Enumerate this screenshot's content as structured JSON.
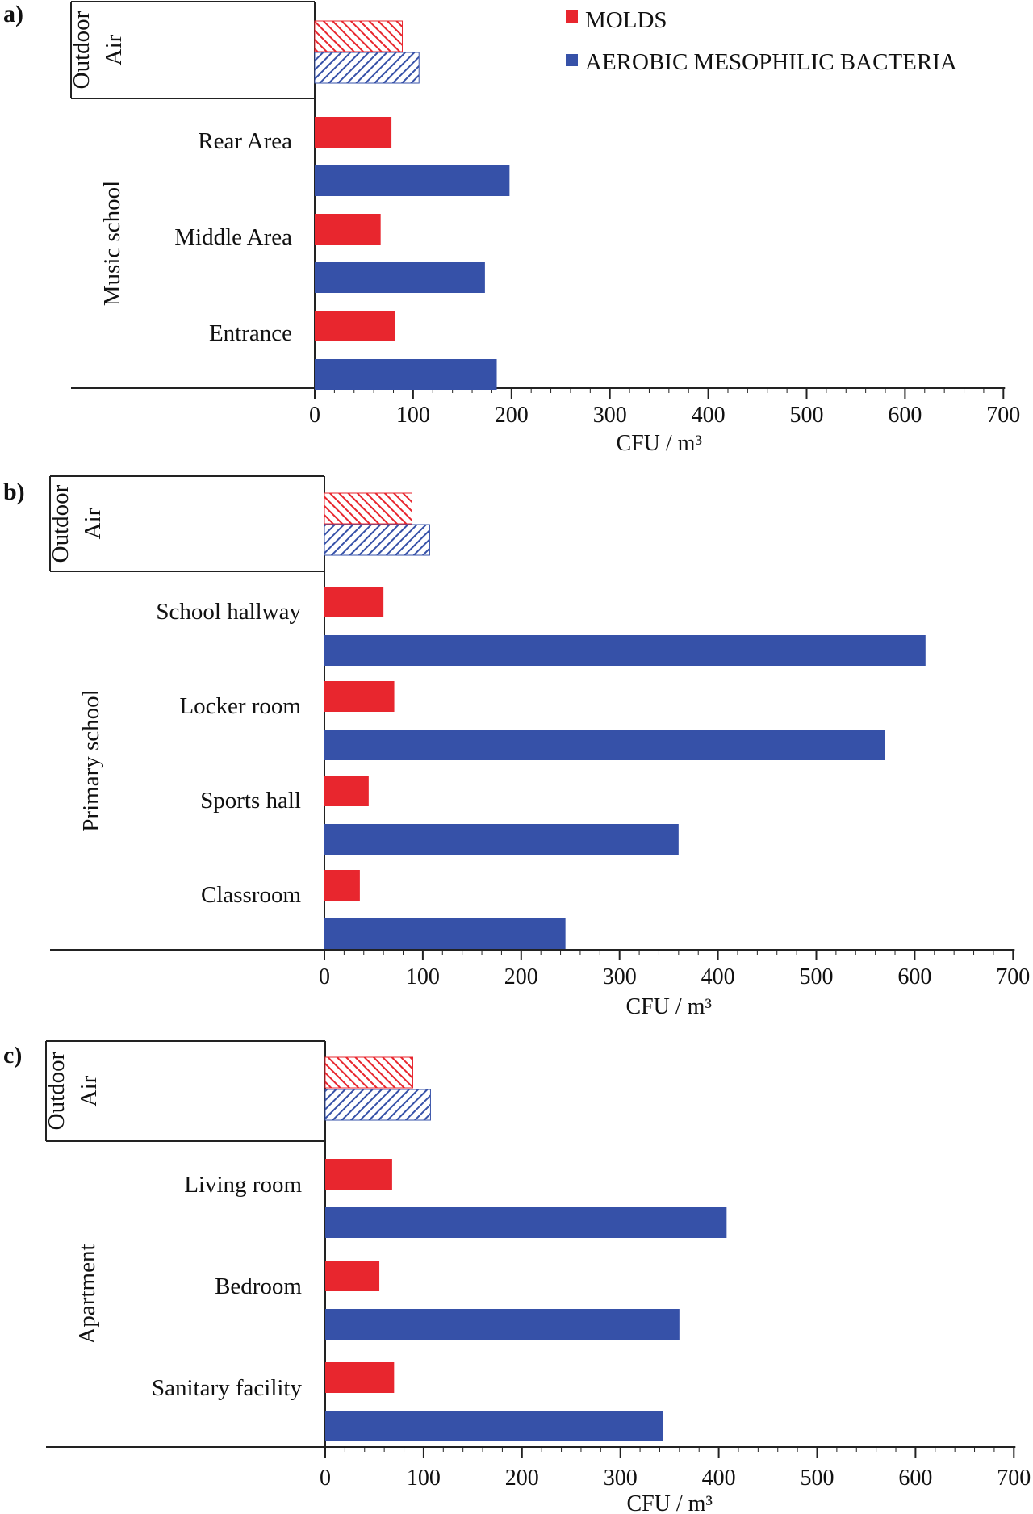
{
  "legend": [
    {
      "key": "molds",
      "label": "MOLDS",
      "color": "#e8262e"
    },
    {
      "key": "bacteria",
      "label": "AEROBIC MESOPHILIC BACTERIA",
      "color": "#3651a8"
    }
  ],
  "chart_data": [
    {
      "type": "bar",
      "orientation": "horizontal",
      "panel": "a)",
      "xlabel": "CFU / m³",
      "xlim": [
        0,
        700
      ],
      "xticks": [
        0,
        100,
        200,
        300,
        400,
        500,
        600,
        700
      ],
      "groups": [
        {
          "label_lines": [
            "Outdoor",
            "Air"
          ],
          "hatched": true,
          "categories": [
            {
              "label": "",
              "molds": 89,
              "bacteria": 106
            }
          ]
        },
        {
          "label_lines": [
            "Music school"
          ],
          "hatched": false,
          "categories": [
            {
              "label": "Rear Area",
              "molds": 78,
              "bacteria": 198
            },
            {
              "label": "Middle Area",
              "molds": 67,
              "bacteria": 173
            },
            {
              "label": "Entrance",
              "molds": 82,
              "bacteria": 185
            }
          ]
        }
      ]
    },
    {
      "type": "bar",
      "orientation": "horizontal",
      "panel": "b)",
      "xlabel": "CFU / m³",
      "xlim": [
        0,
        700
      ],
      "xticks": [
        0,
        100,
        200,
        300,
        400,
        500,
        600,
        700
      ],
      "groups": [
        {
          "label_lines": [
            "Outdoor",
            "Air"
          ],
          "hatched": true,
          "categories": [
            {
              "label": "",
              "molds": 89,
              "bacteria": 107
            }
          ]
        },
        {
          "label_lines": [
            "Primary school"
          ],
          "hatched": false,
          "categories": [
            {
              "label": "School hallway",
              "molds": 60,
              "bacteria": 611
            },
            {
              "label": "Locker room",
              "molds": 71,
              "bacteria": 570
            },
            {
              "label": "Sports hall",
              "molds": 45,
              "bacteria": 360
            },
            {
              "label": "Classroom",
              "molds": 36,
              "bacteria": 245
            }
          ]
        }
      ]
    },
    {
      "type": "bar",
      "orientation": "horizontal",
      "panel": "c)",
      "xlabel": "CFU / m³",
      "xlim": [
        0,
        700
      ],
      "xticks": [
        0,
        100,
        200,
        300,
        400,
        500,
        600,
        700
      ],
      "groups": [
        {
          "label_lines": [
            "Outdoor",
            "Air"
          ],
          "hatched": true,
          "categories": [
            {
              "label": "",
              "molds": 89,
              "bacteria": 107
            }
          ]
        },
        {
          "label_lines": [
            "Apartment"
          ],
          "hatched": false,
          "categories": [
            {
              "label": "Living room",
              "molds": 68,
              "bacteria": 408
            },
            {
              "label": "Bedroom",
              "molds": 55,
              "bacteria": 360
            },
            {
              "label": "Sanitary facility",
              "molds": 70,
              "bacteria": 343
            }
          ]
        }
      ]
    }
  ]
}
